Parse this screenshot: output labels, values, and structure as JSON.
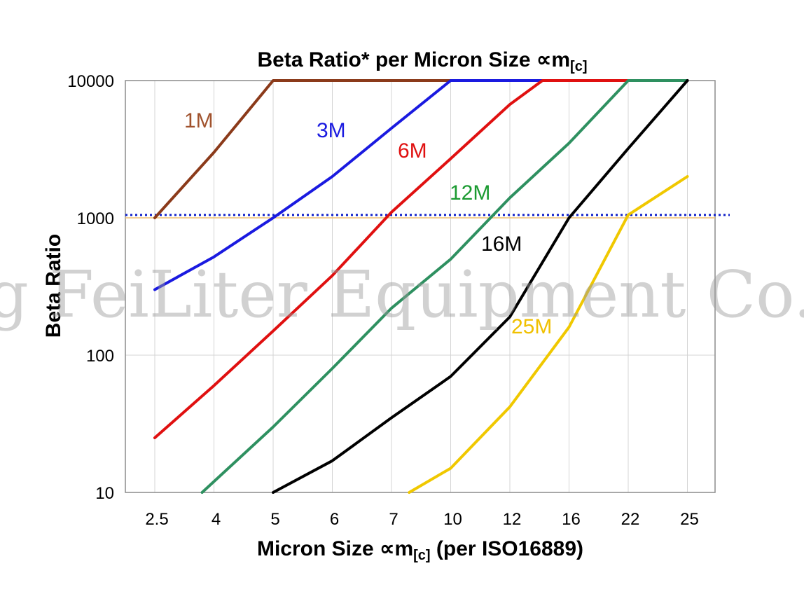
{
  "watermark": "g FeiLiter Equipment Co.",
  "chart_data": {
    "type": "line",
    "title_main": "Beta Ratio* per Micron Size ",
    "title_sym": "∝",
    "title_unit": "m",
    "title_sub": "[c]",
    "xlabel_main": "Micron Size ",
    "xlabel_sym": "∝",
    "xlabel_unit": "m",
    "xlabel_sub": "[c]",
    "xlabel_tail": " (per ISO16889)",
    "ylabel": "Beta Ratio",
    "categories": [
      "2.5",
      "4",
      "5",
      "6",
      "7",
      "10",
      "12",
      "16",
      "22",
      "25"
    ],
    "y_scale": "log",
    "ylim": [
      10,
      10000
    ],
    "y_ticks": [
      {
        "value": 10,
        "label": "10"
      },
      {
        "value": 100,
        "label": "100"
      },
      {
        "value": 1000,
        "label": "1000"
      },
      {
        "value": 10000,
        "label": "10000"
      }
    ],
    "grid": true,
    "reference_lines": [
      {
        "value": 1000,
        "color": "#f0c070",
        "style": "solid"
      },
      {
        "value": 1050,
        "color": "#1020c8",
        "style": "dotted"
      }
    ],
    "series": [
      {
        "name": "1M",
        "color": "#8b3a1a",
        "label_color": "#a0522d",
        "points": [
          [
            0,
            1000
          ],
          [
            1,
            3000
          ],
          [
            2,
            10000
          ],
          [
            9,
            10000
          ]
        ]
      },
      {
        "name": "3M",
        "color": "#1a1ae0",
        "label_color": "#1a1ae0",
        "points": [
          [
            0,
            300
          ],
          [
            1,
            520
          ],
          [
            2,
            1000
          ],
          [
            3,
            2000
          ],
          [
            4,
            4500
          ],
          [
            5,
            10000
          ],
          [
            9,
            10000
          ]
        ]
      },
      {
        "name": "6M",
        "color": "#e01010",
        "label_color": "#e01010",
        "points": [
          [
            0,
            25
          ],
          [
            1,
            60
          ],
          [
            2,
            150
          ],
          [
            3,
            380
          ],
          [
            4,
            1100
          ],
          [
            5,
            2700
          ],
          [
            6,
            6700
          ],
          [
            6.55,
            10000
          ],
          [
            9,
            10000
          ]
        ]
      },
      {
        "name": "12M",
        "color": "#2e9060",
        "label_color": "#1a9a30",
        "points": [
          [
            0.8,
            10
          ],
          [
            2,
            30
          ],
          [
            3,
            80
          ],
          [
            4,
            220
          ],
          [
            5,
            500
          ],
          [
            6,
            1400
          ],
          [
            7,
            3500
          ],
          [
            8,
            10000
          ],
          [
            9,
            10000
          ]
        ]
      },
      {
        "name": "16M",
        "color": "#000000",
        "label_color": "#000000",
        "points": [
          [
            2,
            10
          ],
          [
            3,
            17
          ],
          [
            4,
            35
          ],
          [
            5,
            70
          ],
          [
            6,
            190
          ],
          [
            7,
            1000
          ],
          [
            8,
            3200
          ],
          [
            9,
            10000
          ]
        ]
      },
      {
        "name": "25M",
        "color": "#f0c800",
        "label_color": "#f0c000",
        "points": [
          [
            4.3,
            10
          ],
          [
            5,
            15
          ],
          [
            6,
            42
          ],
          [
            7,
            160
          ],
          [
            8,
            1050
          ],
          [
            9,
            2000
          ]
        ]
      }
    ]
  }
}
